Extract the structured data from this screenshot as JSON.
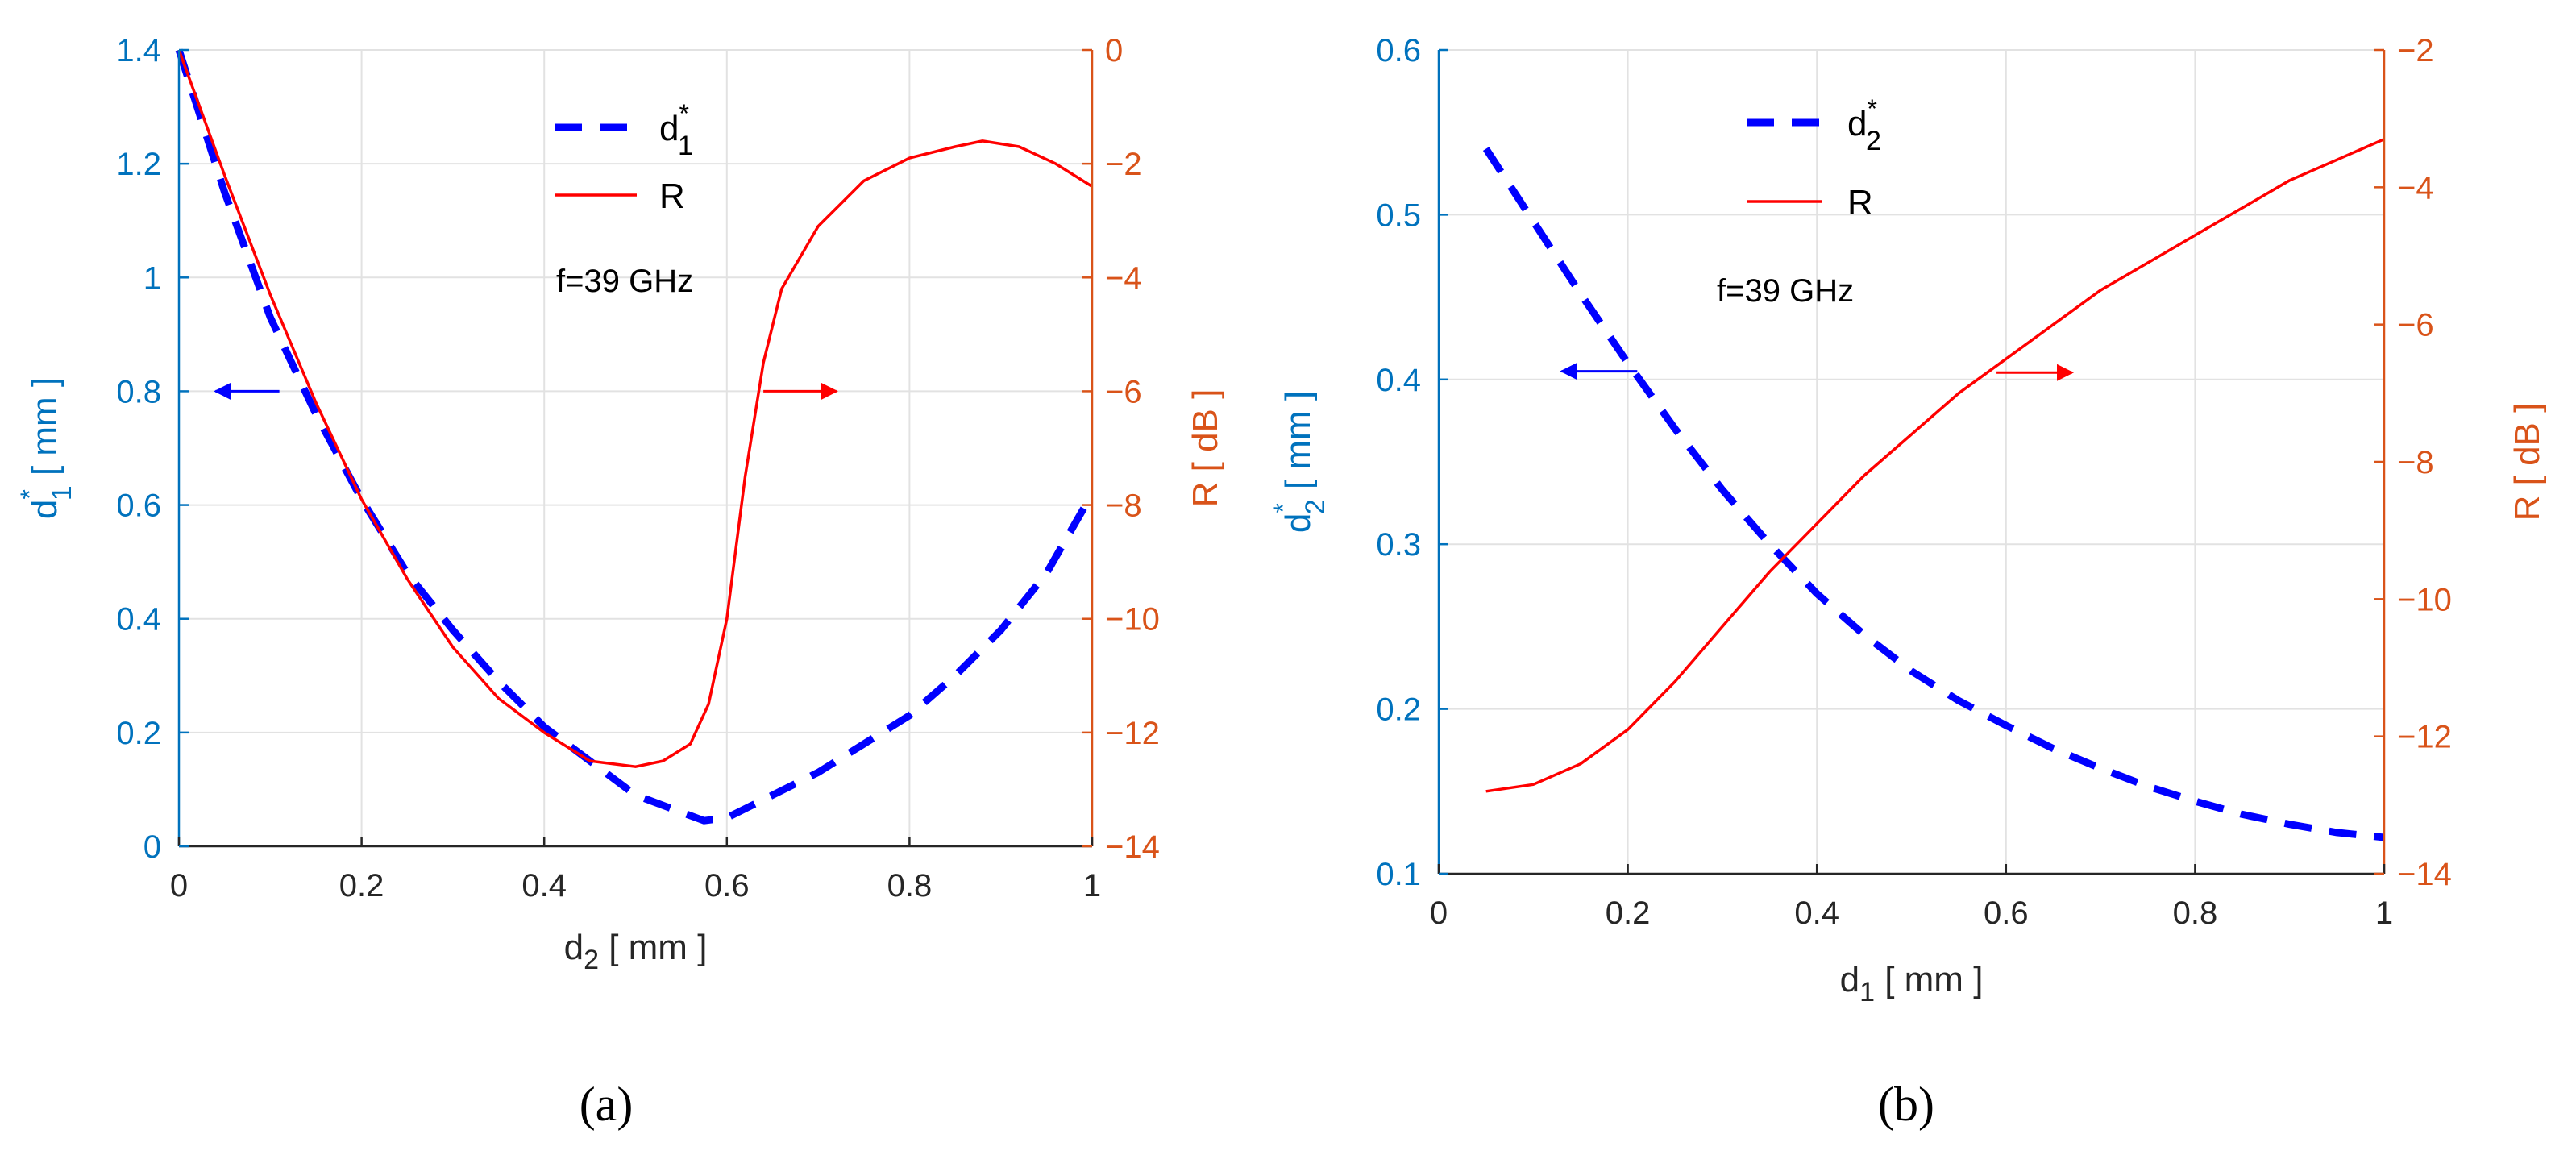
{
  "chart_data": [
    {
      "panel": "(a)",
      "type": "line",
      "title": "",
      "xlabel": "d2 [ mm ]",
      "ylabel_left": "d1* [ mm ]",
      "ylabel_right": "R [ dB ]",
      "xlim": [
        0,
        1
      ],
      "ylim_left": [
        0,
        1.4
      ],
      "ylim_right": [
        -14,
        0
      ],
      "xticks": [
        0,
        0.2,
        0.4,
        0.6,
        0.8,
        1
      ],
      "xtick_labels": [
        "0",
        "0.2",
        "0.4",
        "0.6",
        "0.8",
        "1"
      ],
      "yticks_left": [
        0,
        0.2,
        0.4,
        0.6,
        0.8,
        1,
        1.2,
        1.4
      ],
      "ytick_labels_left": [
        "0",
        "0.2",
        "0.4",
        "0.6",
        "0.8",
        "1",
        "1.2",
        "1.4"
      ],
      "yticks_right": [
        -14,
        -12,
        -10,
        -8,
        -6,
        -4,
        -2,
        0
      ],
      "ytick_labels_right": [
        "−14",
        "−12",
        "−10",
        "−8",
        "−6",
        "−4",
        "−2",
        "0"
      ],
      "grid": true,
      "legend_position": "top-center",
      "annotation": "f=39 GHz",
      "series": [
        {
          "name": "d1*",
          "axis": "left",
          "style": "dashed",
          "color": "#0000FF",
          "x": [
            0,
            0.05,
            0.1,
            0.15,
            0.2,
            0.25,
            0.3,
            0.35,
            0.4,
            0.45,
            0.5,
            0.55,
            0.575,
            0.6,
            0.65,
            0.7,
            0.75,
            0.8,
            0.85,
            0.9,
            0.95,
            1.0
          ],
          "y": [
            1.4,
            1.15,
            0.93,
            0.76,
            0.61,
            0.48,
            0.38,
            0.29,
            0.21,
            0.15,
            0.09,
            0.06,
            0.045,
            0.05,
            0.09,
            0.13,
            0.18,
            0.23,
            0.3,
            0.38,
            0.48,
            0.62
          ]
        },
        {
          "name": "R",
          "axis": "right",
          "style": "solid",
          "color": "#FF0000",
          "x": [
            0,
            0.05,
            0.1,
            0.15,
            0.2,
            0.25,
            0.3,
            0.35,
            0.4,
            0.45,
            0.5,
            0.53,
            0.56,
            0.58,
            0.6,
            0.62,
            0.64,
            0.66,
            0.7,
            0.75,
            0.8,
            0.85,
            0.88,
            0.92,
            0.96,
            1.0
          ],
          "y": [
            0,
            -2.2,
            -4.3,
            -6.2,
            -7.9,
            -9.3,
            -10.5,
            -11.4,
            -12.0,
            -12.5,
            -12.6,
            -12.5,
            -12.2,
            -11.5,
            -10.0,
            -7.5,
            -5.5,
            -4.2,
            -3.1,
            -2.3,
            -1.9,
            -1.7,
            -1.6,
            -1.7,
            -2.0,
            -2.4
          ]
        }
      ],
      "arrows": [
        {
          "direction": "left",
          "color": "#0000FF",
          "x_from": 0.11,
          "x_to": 0.04,
          "y_left": 0.8
        },
        {
          "direction": "right",
          "color": "#FF0000",
          "x_from": 0.64,
          "x_to": 0.72,
          "y_right": -6
        }
      ]
    },
    {
      "panel": "(b)",
      "type": "line",
      "title": "",
      "xlabel": "d1 [ mm ]",
      "ylabel_left": "d2* [ mm ]",
      "ylabel_right": "R [ dB ]",
      "xlim": [
        0,
        1
      ],
      "ylim_left": [
        0.1,
        0.6
      ],
      "ylim_right": [
        -14,
        -2
      ],
      "xticks": [
        0,
        0.2,
        0.4,
        0.6,
        0.8,
        1
      ],
      "xtick_labels": [
        "0",
        "0.2",
        "0.4",
        "0.6",
        "0.8",
        "1"
      ],
      "yticks_left": [
        0.1,
        0.2,
        0.3,
        0.4,
        0.5,
        0.6
      ],
      "ytick_labels_left": [
        "0.1",
        "0.2",
        "0.3",
        "0.4",
        "0.5",
        "0.6"
      ],
      "yticks_right": [
        -14,
        -12,
        -10,
        -8,
        -6,
        -4,
        -2
      ],
      "ytick_labels_right": [
        "−14",
        "−12",
        "−10",
        "−8",
        "−6",
        "−4",
        "−2"
      ],
      "grid": true,
      "legend_position": "top-center",
      "annotation": "f=39 GHz",
      "series": [
        {
          "name": "d2*",
          "axis": "left",
          "style": "dashed",
          "color": "#0000FF",
          "x": [
            0.05,
            0.1,
            0.15,
            0.2,
            0.25,
            0.3,
            0.35,
            0.4,
            0.45,
            0.5,
            0.55,
            0.6,
            0.65,
            0.7,
            0.75,
            0.8,
            0.85,
            0.9,
            0.95,
            1.0
          ],
          "y": [
            0.54,
            0.496,
            0.452,
            0.41,
            0.37,
            0.333,
            0.3,
            0.27,
            0.245,
            0.223,
            0.205,
            0.19,
            0.176,
            0.164,
            0.153,
            0.144,
            0.136,
            0.13,
            0.125,
            0.122
          ]
        },
        {
          "name": "R",
          "axis": "right",
          "style": "solid",
          "color": "#FF0000",
          "x": [
            0.05,
            0.1,
            0.15,
            0.2,
            0.25,
            0.3,
            0.35,
            0.4,
            0.45,
            0.5,
            0.55,
            0.6,
            0.65,
            0.7,
            0.75,
            0.8,
            0.85,
            0.9,
            0.95,
            1.0
          ],
          "y": [
            -12.8,
            -12.7,
            -12.4,
            -11.9,
            -11.2,
            -10.4,
            -9.6,
            -8.9,
            -8.2,
            -7.6,
            -7.0,
            -6.5,
            -6.0,
            -5.5,
            -5.1,
            -4.7,
            -4.3,
            -3.9,
            -3.6,
            -3.3
          ]
        }
      ],
      "arrows": [
        {
          "direction": "left",
          "color": "#0000FF",
          "x_from": 0.21,
          "x_to": 0.13,
          "y_left": 0.405
        },
        {
          "direction": "right",
          "color": "#FF0000",
          "x_from": 0.59,
          "x_to": 0.67,
          "y_right": -6.7
        }
      ]
    }
  ]
}
